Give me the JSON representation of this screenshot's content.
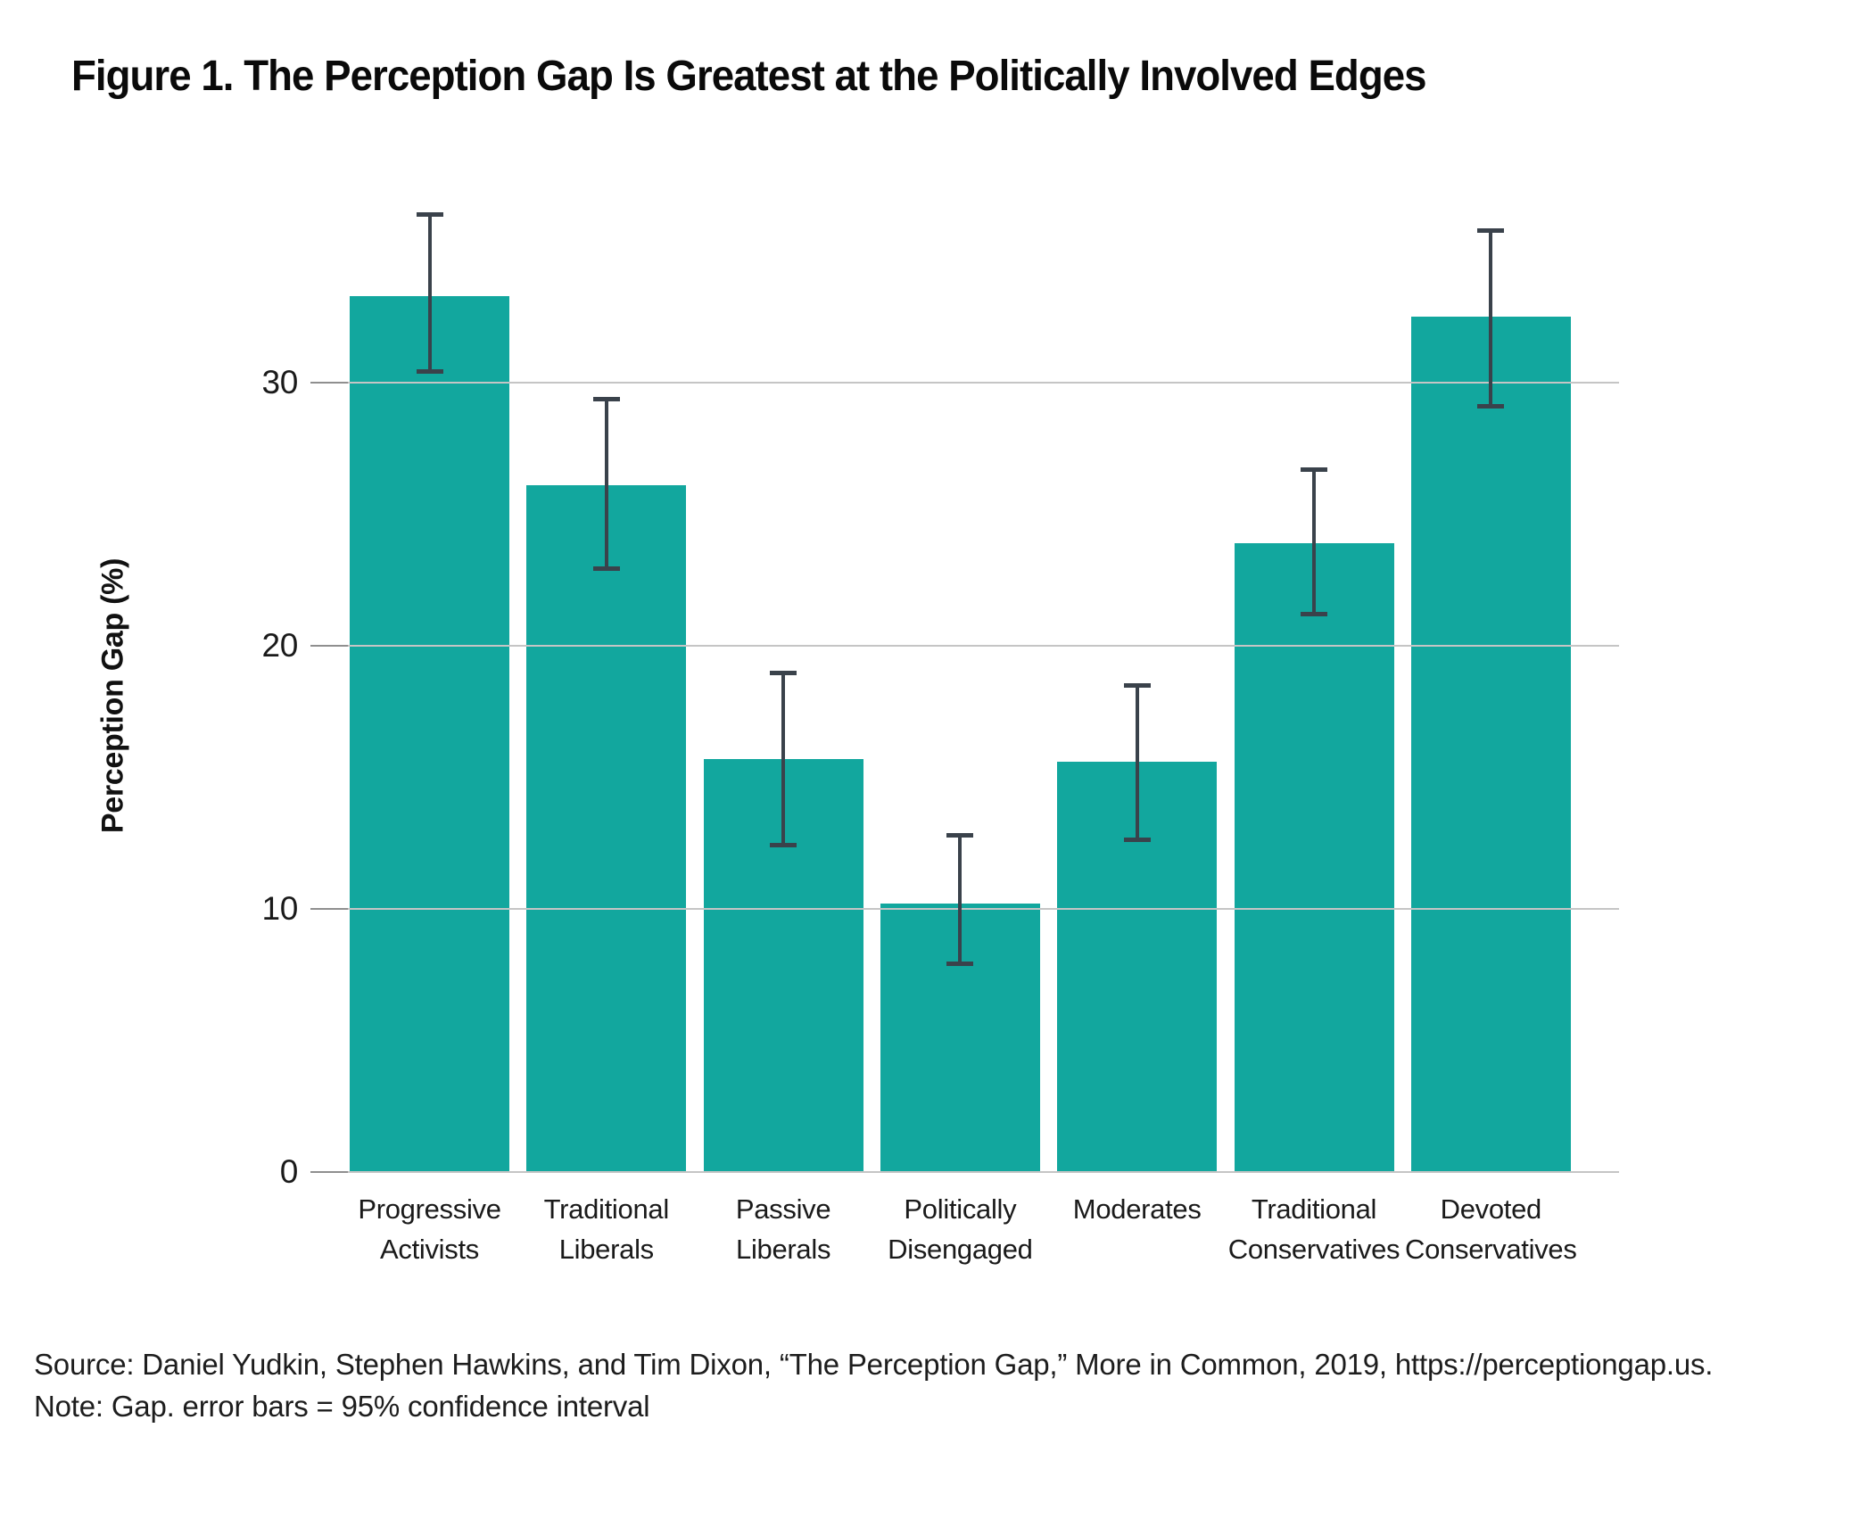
{
  "title": "Figure 1. The Perception Gap Is Greatest at the Politically Involved Edges",
  "source": "Source: Daniel Yudkin, Stephen Hawkins, and Tim Dixon, “The Perception Gap,” More in Common, 2019, https://perceptiongap.us.",
  "note": "Note: Gap. error bars = 95% confidence interval",
  "chart_data": {
    "type": "bar",
    "title": "Figure 1. The Perception Gap Is Greatest at the Politically Involved Edges",
    "xlabel": "",
    "ylabel": "Perception Gap (%)",
    "categories": [
      "Progressive Activists",
      "Traditional Liberals",
      "Passive Liberals",
      "Politically Disengaged",
      "Moderates",
      "Traditional Conservatives",
      "Devoted Conservatives"
    ],
    "categories_lines": [
      [
        "Progressive",
        "Activists"
      ],
      [
        "Traditional",
        "Liberals"
      ],
      [
        "Passive",
        "Liberals"
      ],
      [
        "Politically",
        "Disengaged"
      ],
      [
        "Moderates"
      ],
      [
        "Traditional",
        "Conservatives"
      ],
      [
        "Devoted",
        "Conservatives"
      ]
    ],
    "values": [
      33.3,
      26.1,
      15.7,
      10.2,
      15.6,
      23.9,
      32.5
    ],
    "error_low": [
      30.4,
      22.9,
      12.4,
      7.9,
      12.6,
      21.2,
      29.1
    ],
    "error_high": [
      36.4,
      29.4,
      19.0,
      12.8,
      18.5,
      26.7,
      35.8
    ],
    "error_note": "95% confidence interval",
    "yticks": [
      0,
      10,
      20,
      30
    ],
    "ylim": [
      0,
      37.5
    ],
    "grid": "horizontal gridlines on",
    "legend": "none",
    "bar_color": "#12a79e",
    "error_color": "#3a424b",
    "gridline_color": "#c5c5c5"
  }
}
